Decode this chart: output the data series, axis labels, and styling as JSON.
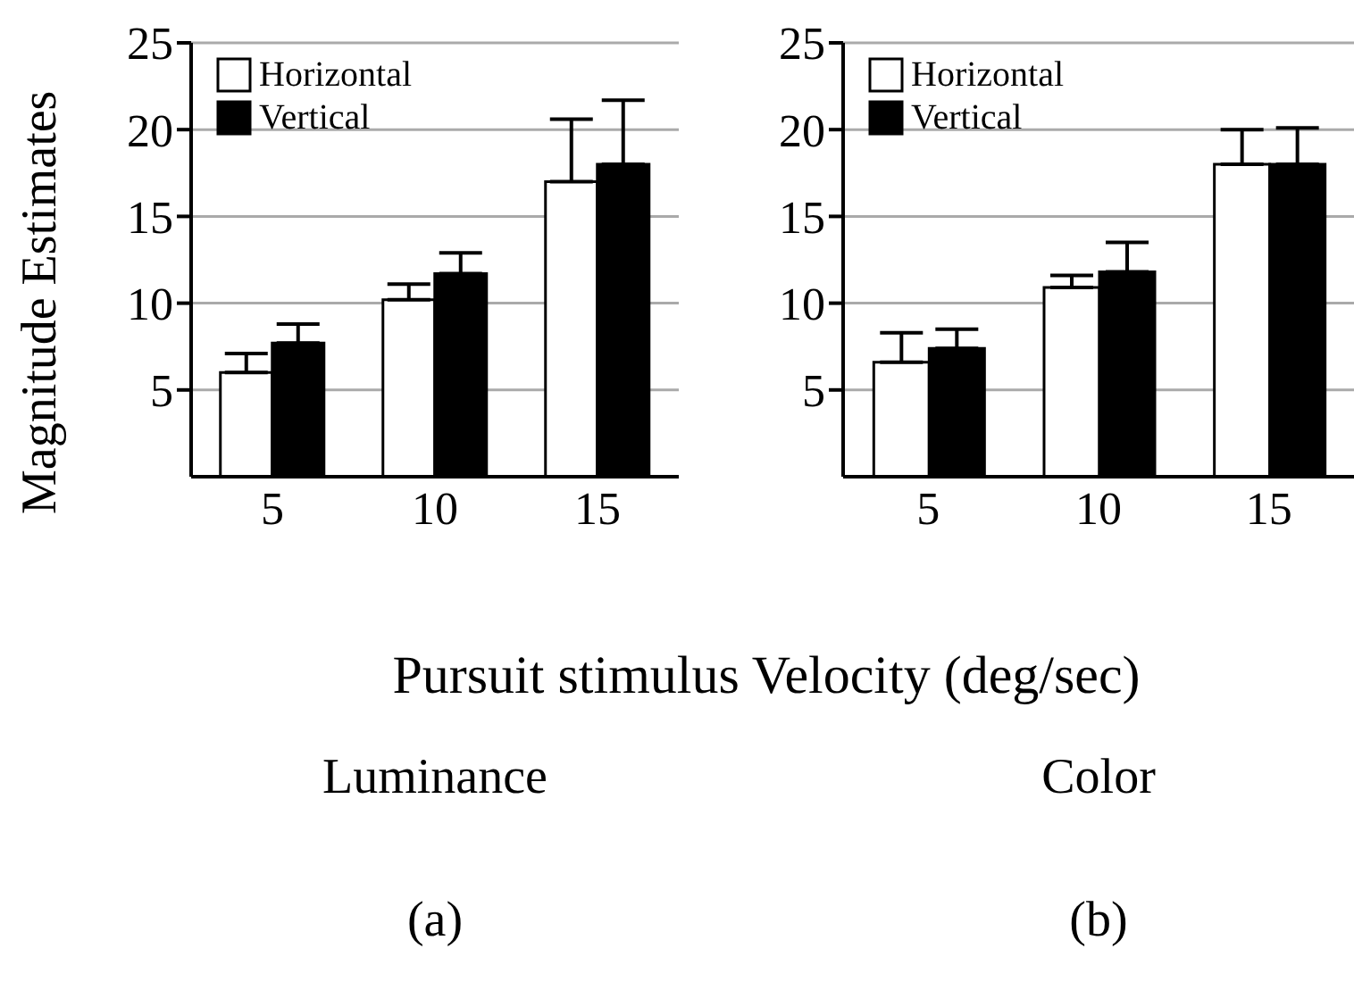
{
  "chart_data": [
    {
      "type": "bar",
      "categories": [
        "5",
        "10",
        "15"
      ],
      "ylabel": "Magnitude Estimates",
      "xlabel": "Pursuit stimulus Velocity (deg/sec)",
      "ylim": [
        0,
        25
      ],
      "yticks": [
        5,
        10,
        15,
        20,
        25
      ],
      "grid": "y",
      "legend": "top left",
      "series": [
        {
          "name": "Horizontal",
          "color": "#ffffff",
          "values": [
            6.0,
            10.2,
            17.0
          ],
          "errors": [
            [
              6.0,
              7.1
            ],
            [
              10.2,
              11.1
            ],
            [
              17.0,
              20.6
            ]
          ]
        },
        {
          "name": "Vertical",
          "color": "#000000",
          "values": [
            7.7,
            11.7,
            18.0
          ],
          "errors": [
            [
              7.7,
              8.8
            ],
            [
              11.7,
              12.9
            ],
            [
              18.0,
              21.7
            ]
          ]
        }
      ],
      "annotations": [
        "Luminance",
        "(a)"
      ]
    },
    {
      "type": "bar",
      "categories": [
        "5",
        "10",
        "15"
      ],
      "ylim": [
        0,
        25
      ],
      "yticks": [
        5,
        10,
        15,
        20,
        25
      ],
      "grid": "y",
      "legend": "top left",
      "series": [
        {
          "name": "Horizontal",
          "color": "#ffffff",
          "values": [
            6.6,
            10.9,
            18.0
          ],
          "errors": [
            [
              6.6,
              8.3
            ],
            [
              10.9,
              11.6
            ],
            [
              18.0,
              20.0
            ]
          ]
        },
        {
          "name": "Vertical",
          "color": "#000000",
          "values": [
            7.4,
            11.8,
            18.0
          ],
          "errors": [
            [
              7.4,
              8.5
            ],
            [
              11.8,
              13.5
            ],
            [
              18.0,
              20.1
            ]
          ]
        }
      ],
      "annotations": [
        "Color",
        "(b)"
      ]
    }
  ]
}
